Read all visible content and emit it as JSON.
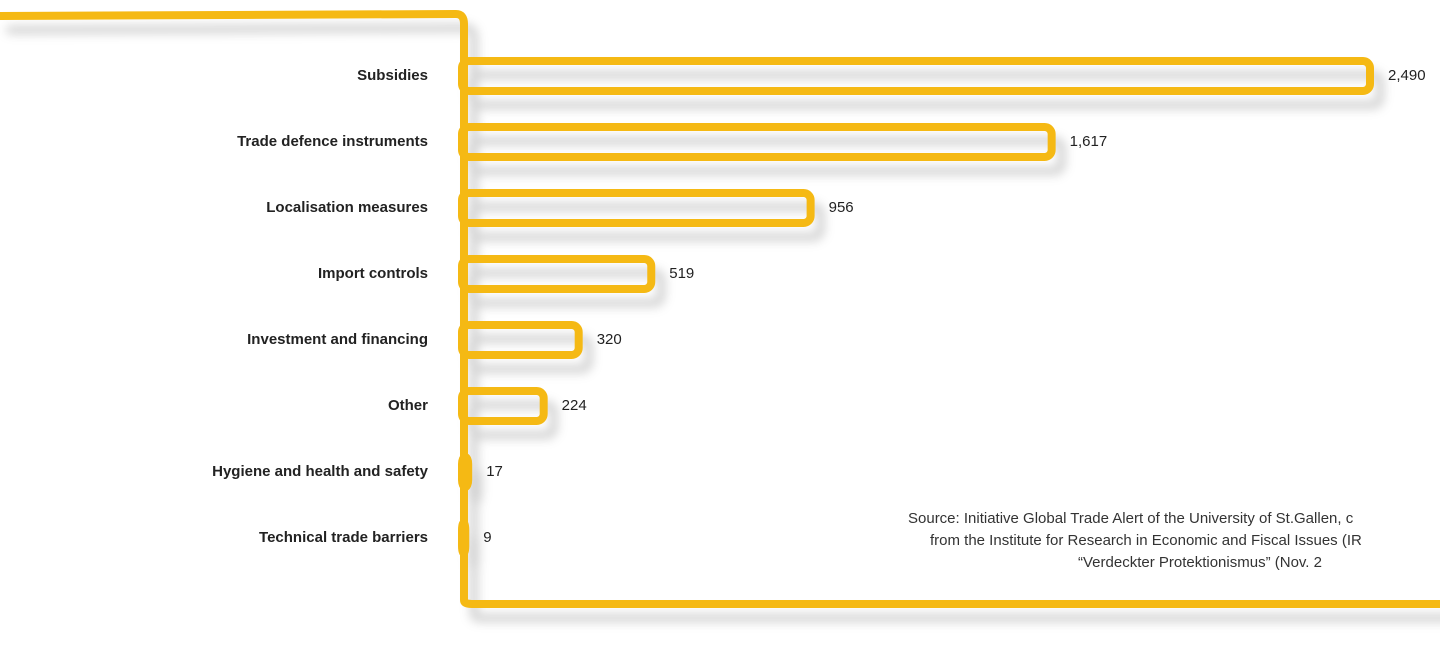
{
  "chart_data": {
    "type": "bar",
    "orientation": "horizontal",
    "categories": [
      "Subsidies",
      "Trade defence instruments",
      "Localisation measures",
      "Import controls",
      "Investment and financing",
      "Other",
      "Hygiene and health and safety",
      "Technical trade barriers"
    ],
    "values": [
      2490,
      1617,
      956,
      519,
      320,
      224,
      17,
      9
    ],
    "value_labels": [
      "2,490",
      "1,617",
      "956",
      "519",
      "320",
      "224",
      "17",
      "9"
    ],
    "color": "#f5b914",
    "source": [
      "Source: Initiative Global Trade Alert of the University of St.Gallen, c",
      "from the Institute for Research in Economic and Fiscal Issues (IR",
      "“Verdeckter Protektionismus” (Nov. 2"
    ]
  }
}
